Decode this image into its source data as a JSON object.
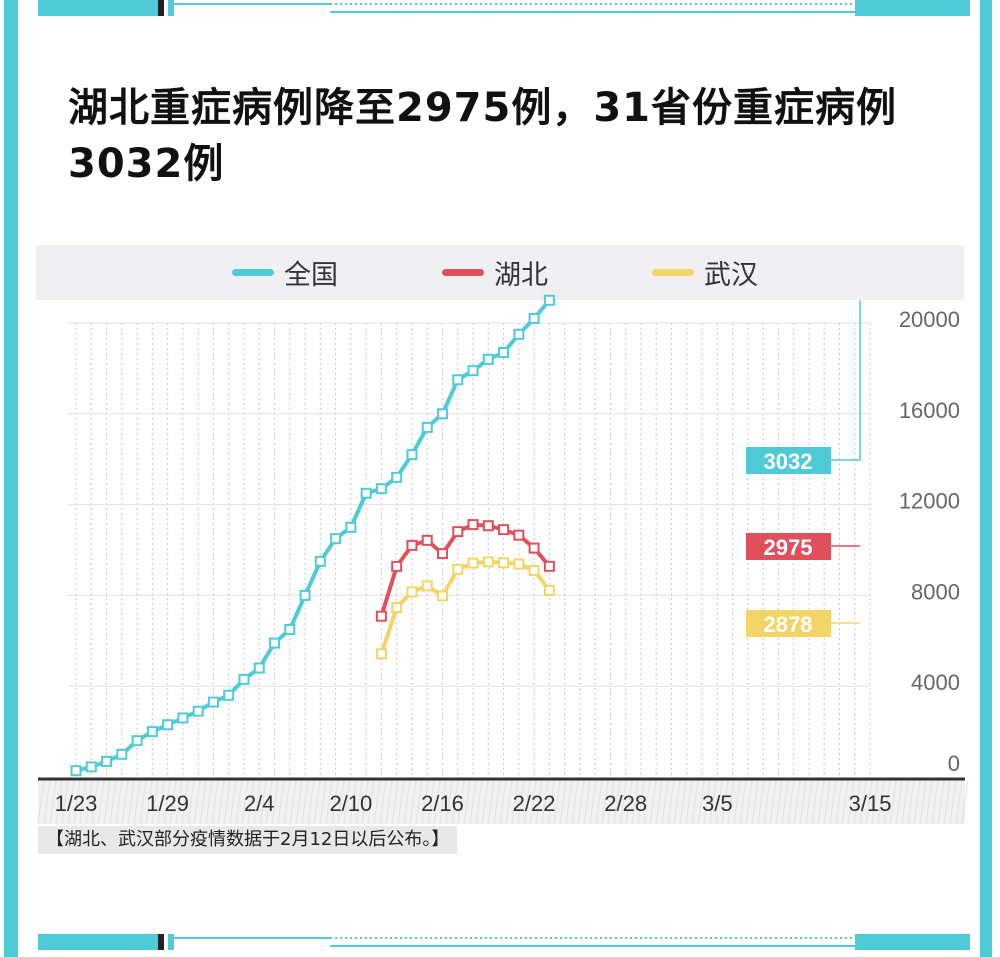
{
  "title": "湖北重症病例降至2975例，31省份重症病例3032例",
  "note": "【湖北、武汉部分疫情数据于2月12日以后公布。】",
  "colors": {
    "frame": "#4ecbd6",
    "national": "#4ecbd6",
    "hubei": "#e0505c",
    "wuhan": "#f2d566"
  },
  "chart_data": {
    "type": "line",
    "ylim": [
      0,
      20000
    ],
    "yticks": [
      "0",
      "4000",
      "8000",
      "12000",
      "16000",
      "20000"
    ],
    "xticks": [
      {
        "i": 0,
        "label": "1/23"
      },
      {
        "i": 6,
        "label": "1/29"
      },
      {
        "i": 12,
        "label": "2/4"
      },
      {
        "i": 18,
        "label": "2/10"
      },
      {
        "i": 24,
        "label": "2/16"
      },
      {
        "i": 30,
        "label": "2/22"
      },
      {
        "i": 36,
        "label": "2/28"
      },
      {
        "i": 42,
        "label": "3/5"
      },
      {
        "i": 52,
        "label": "3/15"
      }
    ],
    "x_count": 53,
    "series": [
      {
        "name": "全国",
        "key": "national",
        "start": 0,
        "end_label": "3032",
        "values": [
          277,
          445,
          688,
          1000,
          1600,
          2000,
          2300,
          2600,
          2900,
          3300,
          3600,
          4300,
          4800,
          5900,
          6500,
          8000,
          9500,
          10500,
          11000,
          12500,
          12700,
          13200,
          14200,
          15400,
          16000,
          17500,
          17900,
          18400,
          18700,
          19500,
          20200,
          21000
        ]
      },
      {
        "name": "湖北",
        "key": "hubei",
        "start": 20,
        "end_label": "2975",
        "values": [
          7084,
          9278,
          10204,
          10425,
          9841,
          10810,
          11119,
          11069,
          10898,
          10654,
          10085,
          9281
        ]
      },
      {
        "name": "武汉",
        "key": "wuhan",
        "start": 20,
        "end_label": "2878",
        "values": [
          5426,
          7466,
          8156,
          8417,
          7978,
          9150,
          9421,
          9477,
          9436,
          9382,
          9096,
          8218
        ]
      }
    ]
  }
}
